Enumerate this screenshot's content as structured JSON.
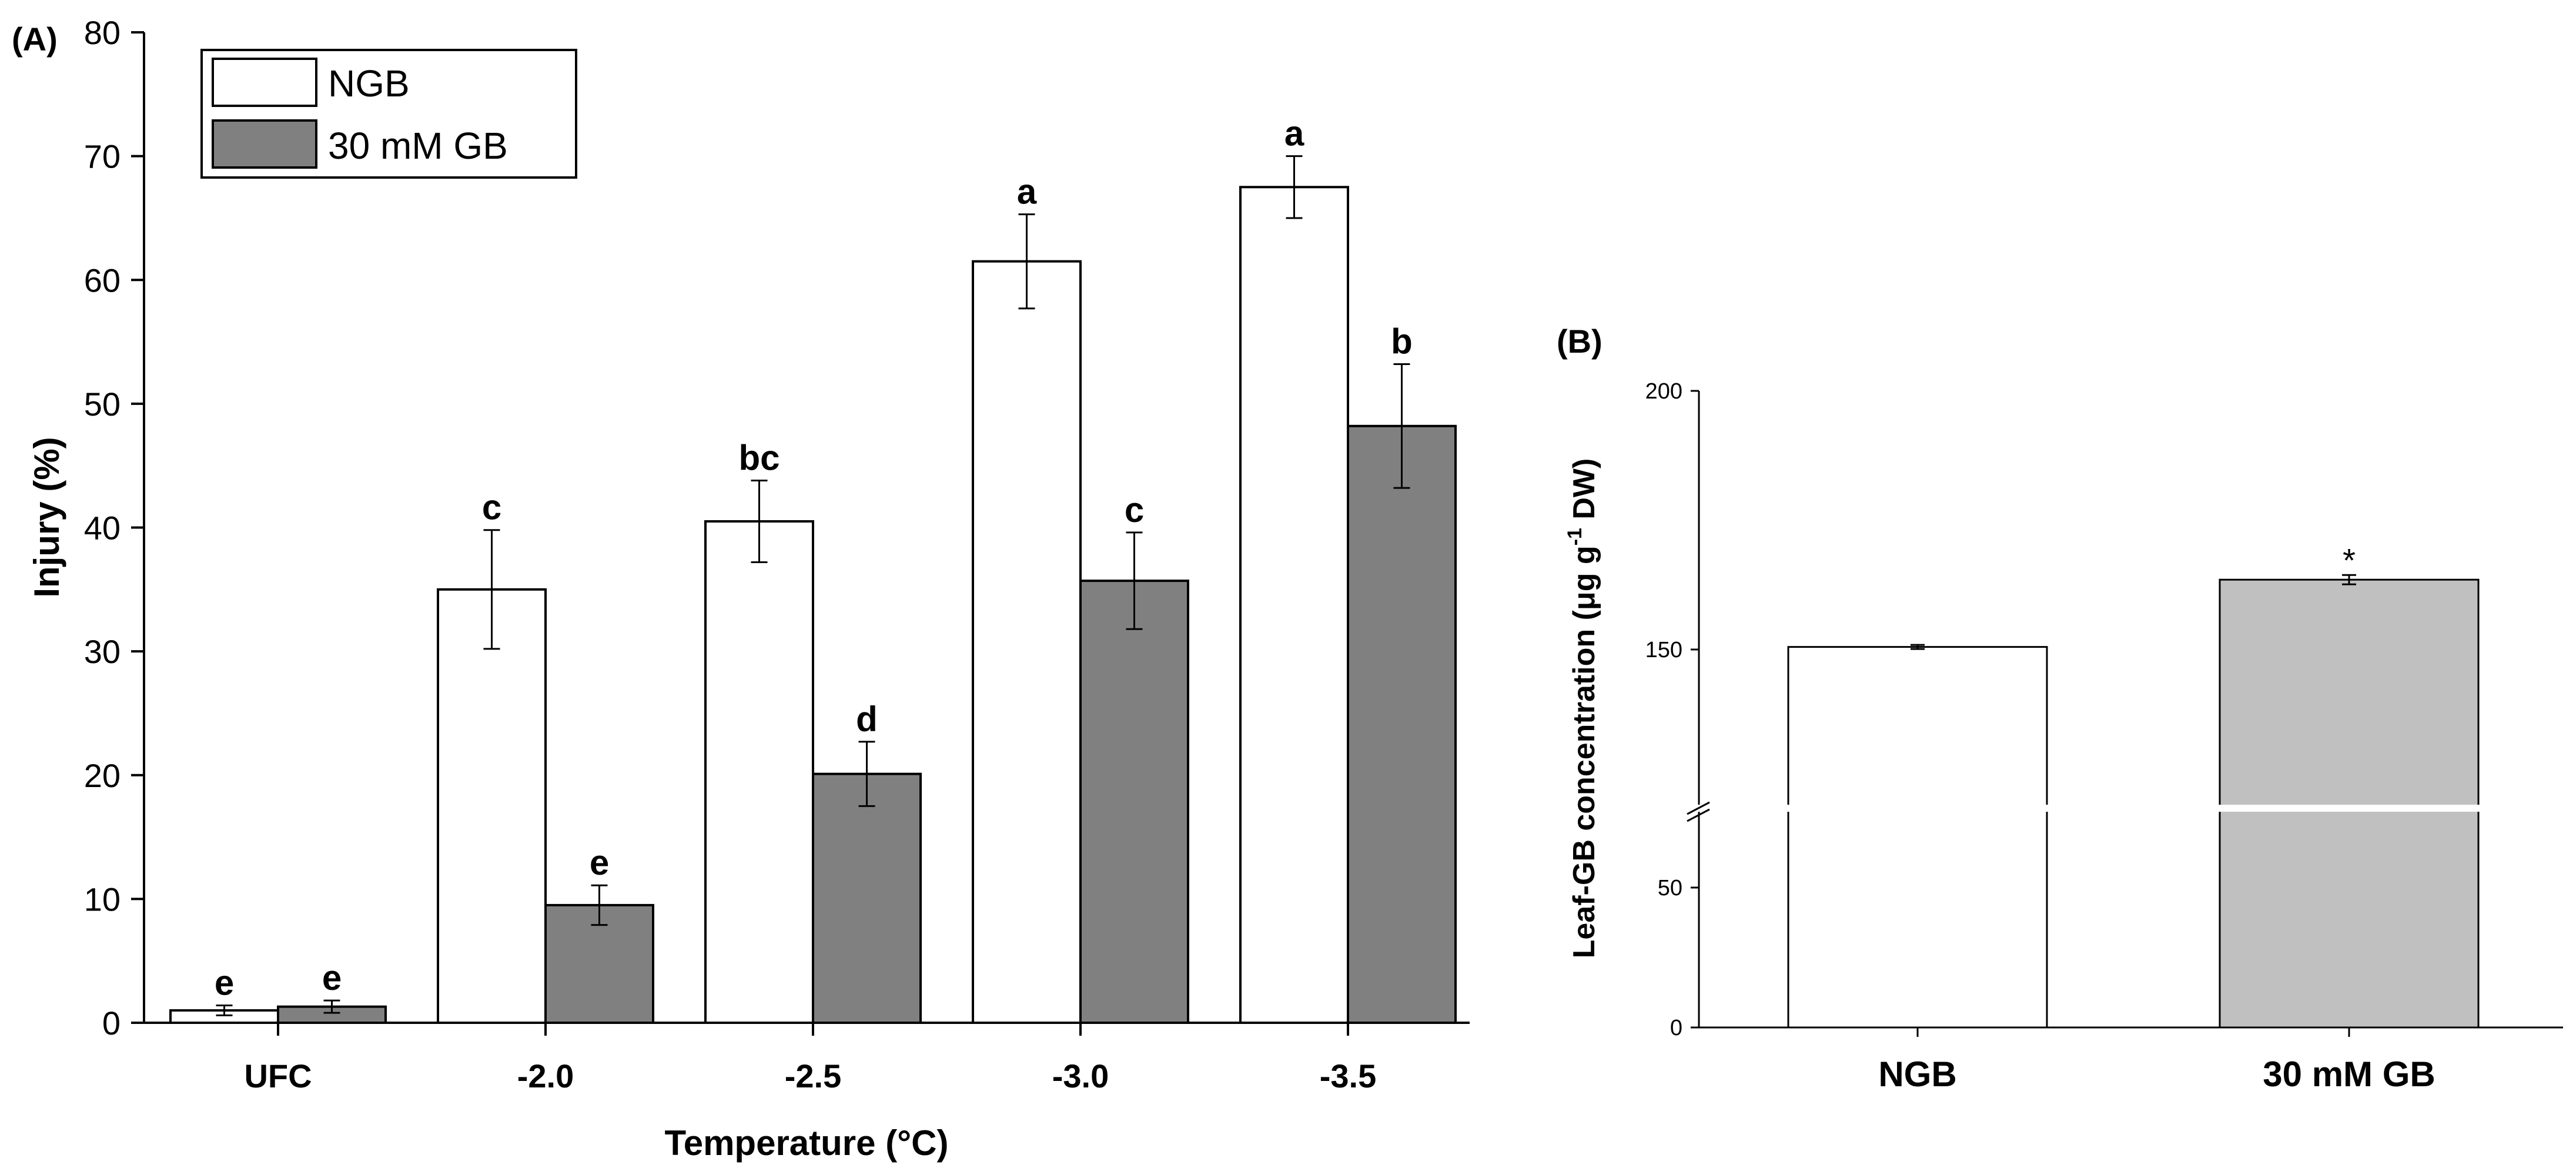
{
  "chart_data": [
    {
      "panel_label": "(A)",
      "type": "bar",
      "xlabel": "Temperature (°C)",
      "ylabel": "Injury (%)",
      "ylim": [
        0,
        80
      ],
      "yticks": [
        0,
        10,
        20,
        30,
        40,
        50,
        60,
        70,
        80
      ],
      "categories": [
        "UFC",
        "-2.0",
        "-2.5",
        "-3.0",
        "-3.5"
      ],
      "legend_position": "top-left",
      "series": [
        {
          "name": "NGB",
          "color": "#ffffff",
          "values": [
            1.0,
            35.0,
            40.5,
            61.5,
            67.5
          ],
          "errors": [
            0.4,
            4.8,
            3.3,
            3.8,
            2.5
          ],
          "letters": [
            "e",
            "c",
            "bc",
            "a",
            "a"
          ]
        },
        {
          "name": "30 mM GB",
          "color": "#808080",
          "values": [
            1.3,
            9.5,
            20.1,
            35.7,
            48.2
          ],
          "errors": [
            0.5,
            1.6,
            2.6,
            3.9,
            5.0
          ],
          "letters": [
            "e",
            "e",
            "d",
            "c",
            "b"
          ]
        }
      ]
    },
    {
      "panel_label": "(B)",
      "type": "bar",
      "xlabel": "",
      "ylabel": "Leaf-GB concentration (μg g-1 DW)",
      "ylabel_parts": {
        "before": "Leaf-GB concentration (μg g",
        "sup": "-1",
        "after": " DW)"
      },
      "axis_break": true,
      "yticks": [
        0,
        50,
        150,
        200
      ],
      "categories": [
        "NGB",
        "30 mM GB"
      ],
      "values": [
        150.5,
        163.5
      ],
      "errors": [
        0.4,
        0.9
      ],
      "colors": [
        "#ffffff",
        "#c0c0c0"
      ],
      "annotations": [
        "",
        "*"
      ]
    }
  ]
}
